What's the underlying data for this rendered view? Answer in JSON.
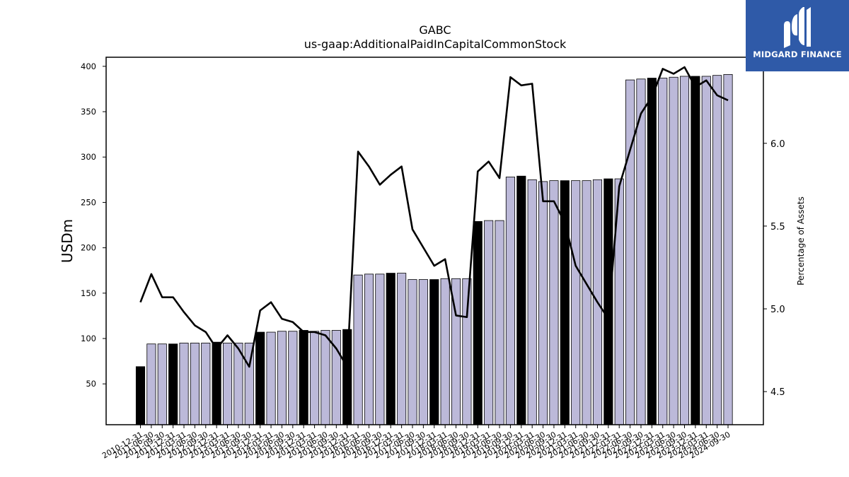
{
  "brand": {
    "name": "MIDGARD FINANCE",
    "logo_icon": "midgard-m-icon",
    "color": "#2f5aa8"
  },
  "chart_data": {
    "type": "bar",
    "title": "GABC",
    "subtitle": "us-gaap:AdditionalPaidInCapitalCommonStock",
    "ylabel": "USDm",
    "y2label": "Percentage of Assets",
    "ylim": [
      5,
      410
    ],
    "y2lim": [
      4.3,
      6.52
    ],
    "yticks": [
      50,
      100,
      150,
      200,
      250,
      300,
      350,
      400
    ],
    "y2ticks": [
      4.5,
      5.0,
      5.5,
      6.0,
      6.5
    ],
    "y2ticklabels": [
      "4.5",
      "5.0",
      "5.5",
      "6.0",
      "6.5"
    ],
    "grid": false,
    "bar_color": "#bcb9d9",
    "highlight_color": "#000000",
    "line_color": "#000000",
    "categories": [
      "2010-12-31",
      "2011-06-30",
      "2011-09-30",
      "2011-12-31",
      "2012-03-31",
      "2012-06-30",
      "2012-09-30",
      "2012-12-31",
      "2013-03-31",
      "2013-06-30",
      "2013-09-30",
      "2013-12-31",
      "2014-03-31",
      "2014-06-30",
      "2014-09-30",
      "2014-12-31",
      "2015-03-31",
      "2015-06-30",
      "2015-09-30",
      "2015-12-31",
      "2016-03-31",
      "2016-06-30",
      "2016-09-30",
      "2016-12-31",
      "2017-03-31",
      "2017-06-30",
      "2017-09-30",
      "2017-12-31",
      "2018-03-31",
      "2018-06-30",
      "2018-09-30",
      "2018-12-31",
      "2019-03-31",
      "2019-06-30",
      "2019-09-30",
      "2019-12-31",
      "2020-03-31",
      "2020-06-30",
      "2020-09-30",
      "2020-12-31",
      "2021-03-31",
      "2021-06-30",
      "2021-09-30",
      "2021-12-31",
      "2022-03-31",
      "2022-06-30",
      "2022-09-30",
      "2022-12-31",
      "2023-03-31",
      "2023-06-30",
      "2023-09-30",
      "2023-12-31",
      "2024-03-31",
      "2024-06-30",
      "2024-09-30"
    ],
    "series": [
      {
        "type": "bar",
        "values": [
          69,
          94,
          94,
          94,
          95,
          95,
          95,
          96,
          95,
          95,
          95,
          107,
          107,
          108,
          108,
          109,
          108,
          109,
          109,
          110,
          170,
          171,
          171,
          172,
          172,
          165,
          165,
          165,
          166,
          166,
          166,
          229,
          230,
          230,
          278,
          279,
          275,
          273,
          274,
          274,
          274,
          274,
          275,
          276,
          276,
          385,
          386,
          387,
          387,
          388,
          389,
          389,
          389,
          390,
          391
        ],
        "highlight": [
          1,
          0,
          0,
          1,
          0,
          0,
          0,
          1,
          0,
          0,
          0,
          1,
          0,
          0,
          0,
          1,
          0,
          0,
          0,
          1,
          0,
          0,
          0,
          1,
          0,
          0,
          0,
          1,
          0,
          0,
          0,
          1,
          0,
          0,
          0,
          1,
          0,
          0,
          0,
          1,
          0,
          0,
          0,
          1,
          0,
          0,
          0,
          1,
          0,
          0,
          0,
          1,
          0,
          0,
          0
        ]
      },
      {
        "type": "line",
        "axis": "right",
        "values": [
          5.04,
          5.21,
          5.07,
          5.07,
          4.98,
          4.9,
          4.86,
          4.76,
          4.84,
          4.76,
          4.65,
          4.99,
          5.04,
          4.94,
          4.92,
          4.86,
          4.86,
          4.84,
          4.76,
          4.65,
          5.95,
          5.86,
          5.75,
          5.81,
          5.86,
          5.48,
          5.37,
          5.26,
          5.3,
          4.96,
          4.95,
          5.83,
          5.89,
          5.79,
          6.4,
          6.35,
          6.36,
          5.65,
          5.65,
          5.52,
          5.26,
          5.15,
          5.04,
          4.94,
          5.74,
          5.96,
          6.18,
          6.28,
          6.45,
          6.42,
          6.46,
          6.34,
          6.38,
          6.29,
          6.26
        ]
      }
    ]
  }
}
